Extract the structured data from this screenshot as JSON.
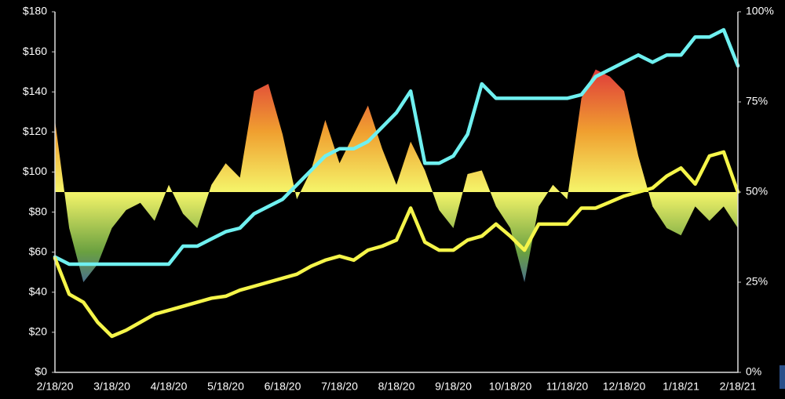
{
  "chart_data": {
    "type": "line",
    "categories": [
      "2/18/20",
      null,
      null,
      null,
      "3/18/20",
      null,
      null,
      null,
      "4/18/20",
      null,
      null,
      null,
      "5/18/20",
      null,
      null,
      null,
      "6/18/20",
      null,
      null,
      null,
      "7/18/20",
      null,
      null,
      null,
      "8/18/20",
      null,
      null,
      null,
      "9/18/20",
      null,
      null,
      null,
      "10/18/20",
      null,
      null,
      null,
      "11/18/20",
      null,
      null,
      null,
      "12/18/20",
      null,
      null,
      null,
      "1/18/21",
      null,
      null,
      null,
      "2/18/21"
    ],
    "ylim": [
      0,
      180
    ],
    "yticks": [
      {
        "value": 0,
        "label": "$0"
      },
      {
        "value": 20,
        "label": "$20"
      },
      {
        "value": 40,
        "label": "$40"
      },
      {
        "value": 60,
        "label": "$60"
      },
      {
        "value": 80,
        "label": "$80"
      },
      {
        "value": 100,
        "label": "$100"
      },
      {
        "value": 120,
        "label": "$120"
      },
      {
        "value": 140,
        "label": "$140"
      },
      {
        "value": 160,
        "label": "$160"
      },
      {
        "value": 180,
        "label": "$180"
      }
    ],
    "y2lim": [
      0,
      100
    ],
    "y2ticks": [
      {
        "value": 0,
        "label": "0%"
      },
      {
        "value": 25,
        "label": "25%"
      },
      {
        "value": 50,
        "label": "50%"
      },
      {
        "value": 75,
        "label": "75%"
      },
      {
        "value": 100,
        "label": "100%"
      }
    ],
    "grid": false,
    "series": [
      {
        "type": "area",
        "axis": "y2",
        "baseline": 50,
        "colors": [
          "#9a2aa8",
          "#e0403a",
          "#f0a030",
          "#f5f56a",
          "#6aa040",
          "#2a40d8",
          "#7030b0"
        ],
        "values": [
          70,
          40,
          25,
          30,
          40,
          45,
          47,
          42,
          52,
          44,
          40,
          52,
          58,
          54,
          78,
          80,
          66,
          48,
          56,
          70,
          58,
          66,
          74,
          62,
          52,
          64,
          56,
          45,
          40,
          55,
          56,
          46,
          40,
          25,
          46,
          52,
          48,
          76,
          84,
          82,
          78,
          60,
          46,
          40,
          38,
          46,
          42,
          46,
          40
        ]
      },
      {
        "type": "line",
        "axis": "y2",
        "color": "#6ff0f0",
        "values": [
          32,
          30,
          30,
          30,
          30,
          30,
          30,
          30,
          30,
          35,
          35,
          37,
          39,
          40,
          44,
          46,
          48,
          52,
          56,
          60,
          62,
          62,
          64,
          68,
          72,
          78,
          58,
          58,
          60,
          66,
          80,
          76,
          76,
          76,
          76,
          76,
          76,
          77,
          82,
          84,
          86,
          88,
          86,
          88,
          88,
          93,
          93,
          95,
          85
        ]
      },
      {
        "type": "line",
        "axis": "y",
        "color": "#f5f54a",
        "values": [
          57,
          39,
          35,
          25,
          18,
          21,
          25,
          29,
          31,
          33,
          35,
          37,
          38,
          41,
          43,
          45,
          47,
          49,
          53,
          56,
          58,
          56,
          61,
          63,
          66,
          82,
          65,
          61,
          61,
          66,
          68,
          74,
          68,
          61,
          74,
          74,
          74,
          82,
          82,
          85,
          88,
          90,
          92,
          98,
          102,
          94,
          108,
          110,
          90
        ]
      }
    ]
  }
}
